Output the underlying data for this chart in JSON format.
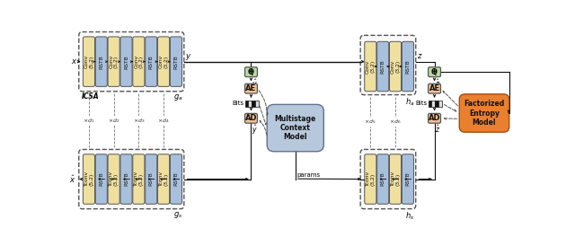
{
  "fig_width": 6.4,
  "fig_height": 2.64,
  "dpi": 100,
  "bg_color": "#ffffff",
  "conv_color": "#f0e0a0",
  "rstb_color": "#a8c0dc",
  "q_color": "#b8dca0",
  "ae_ad_color": "#f0c090",
  "multistage_color": "#b8c8dc",
  "factorized_color": "#e88030",
  "icsa_label": "ICSA",
  "multistage_label": "Multistage\nContext\nModel",
  "factorized_label": "Factorized\nEntropy\nModel",
  "ga_blocks": [
    [
      "Conv\n(5,2)",
      "conv"
    ],
    [
      "RSTB",
      "rstb"
    ],
    [
      "Conv\n(3,2)",
      "conv"
    ],
    [
      "RSTB",
      "rstb"
    ],
    [
      "Conv\n(3,2)",
      "conv"
    ],
    [
      "RSTB",
      "rstb"
    ],
    [
      "Conv\n(3,2)",
      "conv"
    ],
    [
      "RSTB",
      "rstb"
    ]
  ],
  "ha_blocks": [
    [
      "Conv\n(3,2)",
      "conv"
    ],
    [
      "RSTB",
      "rstb"
    ],
    [
      "Conv\n(3,2)",
      "conv"
    ],
    [
      "RSTB",
      "rstb"
    ]
  ],
  "gs_blocks": [
    [
      "Tconv\n(5,2)",
      "conv"
    ],
    [
      "RSTB",
      "rstb"
    ],
    [
      "Tconv\n(3,2)",
      "conv"
    ],
    [
      "RSTB",
      "rstb"
    ],
    [
      "Tconv\n(3,2)",
      "conv"
    ],
    [
      "RSTB",
      "rstb"
    ],
    [
      "Tconv\n(3,2)",
      "conv"
    ],
    [
      "RSTB",
      "rstb"
    ]
  ],
  "hs_blocks": [
    [
      "Tconv\n(3,2)",
      "conv"
    ],
    [
      "RSTB",
      "rstb"
    ],
    [
      "Tconv\n(3,2)",
      "conv"
    ],
    [
      "RSTB",
      "rstb"
    ]
  ]
}
